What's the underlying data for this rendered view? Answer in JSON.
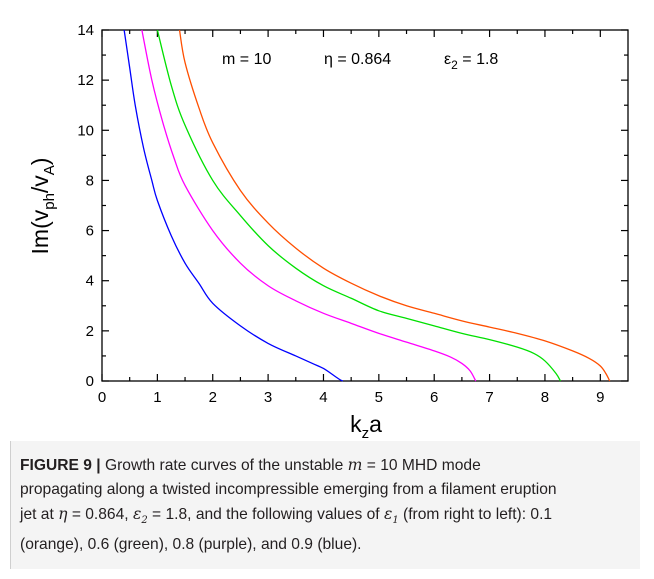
{
  "chart_data": {
    "type": "line",
    "xlabel": "k_z a",
    "ylabel": "Im(v_ph/v_A)",
    "xlim": [
      0,
      9.5
    ],
    "ylim": [
      0,
      14
    ],
    "xticks": [
      0,
      1,
      2,
      3,
      4,
      5,
      6,
      7,
      8,
      9
    ],
    "yticks": [
      0,
      2,
      4,
      6,
      8,
      10,
      12,
      14
    ],
    "grid": false,
    "legend": "none",
    "annotations": [
      "m = 10",
      "η = 0.864",
      "ε₂ = 1.8"
    ],
    "series": [
      {
        "color": "#ff4f00",
        "x": [
          1.4,
          1.5,
          1.75,
          2.0,
          2.5,
          3.0,
          3.5,
          4.0,
          4.5,
          5.0,
          5.5,
          6.0,
          6.5,
          7.0,
          7.5,
          8.0,
          8.5,
          8.8,
          9.0,
          9.1,
          9.17
        ],
        "y": [
          14,
          12.7,
          10.9,
          9.5,
          7.6,
          6.3,
          5.3,
          4.5,
          3.9,
          3.4,
          3.0,
          2.7,
          2.4,
          2.15,
          1.9,
          1.6,
          1.2,
          0.9,
          0.6,
          0.3,
          0
        ]
      },
      {
        "color": "#00e000",
        "x": [
          1.0,
          1.25,
          1.5,
          2.0,
          2.5,
          3.0,
          3.5,
          4.0,
          4.5,
          5.0,
          5.5,
          6.0,
          6.5,
          7.0,
          7.5,
          7.8,
          8.0,
          8.2,
          8.28
        ],
        "y": [
          14,
          11.8,
          10.2,
          8.0,
          6.6,
          5.4,
          4.5,
          3.8,
          3.3,
          2.8,
          2.5,
          2.2,
          1.9,
          1.65,
          1.35,
          1.1,
          0.8,
          0.3,
          0
        ]
      },
      {
        "color": "#ff00ff",
        "x": [
          0.72,
          0.9,
          1.1,
          1.3,
          1.5,
          2.0,
          2.5,
          3.0,
          3.5,
          4.0,
          4.5,
          5.0,
          5.5,
          6.0,
          6.3,
          6.5,
          6.65,
          6.75
        ],
        "y": [
          14,
          12.0,
          10.3,
          8.9,
          7.8,
          6.0,
          4.7,
          3.8,
          3.2,
          2.7,
          2.3,
          1.9,
          1.55,
          1.2,
          0.95,
          0.7,
          0.4,
          0
        ]
      },
      {
        "color": "#0000ff",
        "x": [
          0.4,
          0.5,
          0.6,
          0.75,
          0.9,
          1.0,
          1.25,
          1.5,
          1.75,
          2.0,
          2.5,
          3.0,
          3.5,
          3.8,
          4.0,
          4.2,
          4.3,
          4.35
        ],
        "y": [
          14,
          12.5,
          11.0,
          9.3,
          8.0,
          7.2,
          5.8,
          4.7,
          3.9,
          3.1,
          2.2,
          1.5,
          1.0,
          0.7,
          0.5,
          0.2,
          0.05,
          0
        ]
      }
    ]
  },
  "caption": {
    "label": "FIGURE 9 |",
    "line1_pre": " Growth rate curves of the unstable ",
    "m_var": "m",
    "line1_eq": " = 10 MHD mode",
    "line2": "propagating along a twisted incompressible emerging from a filament eruption",
    "line3_pre": "jet at ",
    "eta_sym": "η",
    "eta_eq": " = 0.864, ",
    "eps_sym": "ε",
    "eps2_sub": "2",
    "eps2_eq": " = 1.8, and the following values of ",
    "eps1_sub": "1",
    "line3_post": " (from right to left): 0.1",
    "line4": "(orange), 0.6 (green), 0.8 (purple), and 0.9 (blue)."
  }
}
